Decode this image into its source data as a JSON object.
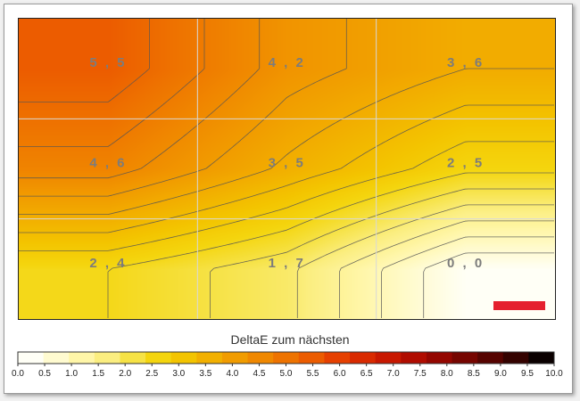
{
  "chart_data": {
    "type": "heatmap",
    "title": "",
    "legend_title": "DeltaE zum nächsten",
    "grid": {
      "rows": 3,
      "cols": 3
    },
    "values": [
      [
        "5,5",
        "4,2",
        "3,6"
      ],
      [
        "4,6",
        "3,5",
        "2,5"
      ],
      [
        "2,4",
        "1,7",
        "0,0"
      ]
    ],
    "color_scale": {
      "min": 0,
      "max": 10,
      "ticks": [
        "0.0",
        "0.5",
        "1.0",
        "1.5",
        "2.0",
        "2.5",
        "3.0",
        "3.5",
        "4.0",
        "4.5",
        "5.0",
        "5.5",
        "6.0",
        "6.5",
        "7.0",
        "7.5",
        "8.0",
        "8.5",
        "9.0",
        "9.5",
        "10.0"
      ],
      "colors": [
        "#fffff6",
        "#fffbd0",
        "#fff6a8",
        "#fbee80",
        "#f6e245",
        "#f4d50e",
        "#f3c400",
        "#f2b000",
        "#f19c00",
        "#f08800",
        "#ee7300",
        "#ec5c00",
        "#e64000",
        "#d92a00",
        "#c81800",
        "#b00c00",
        "#940600",
        "#760500",
        "#560300",
        "#340200",
        "#0a0000"
      ]
    },
    "marker_color": "#e5212e",
    "contour_color": "#555555"
  }
}
